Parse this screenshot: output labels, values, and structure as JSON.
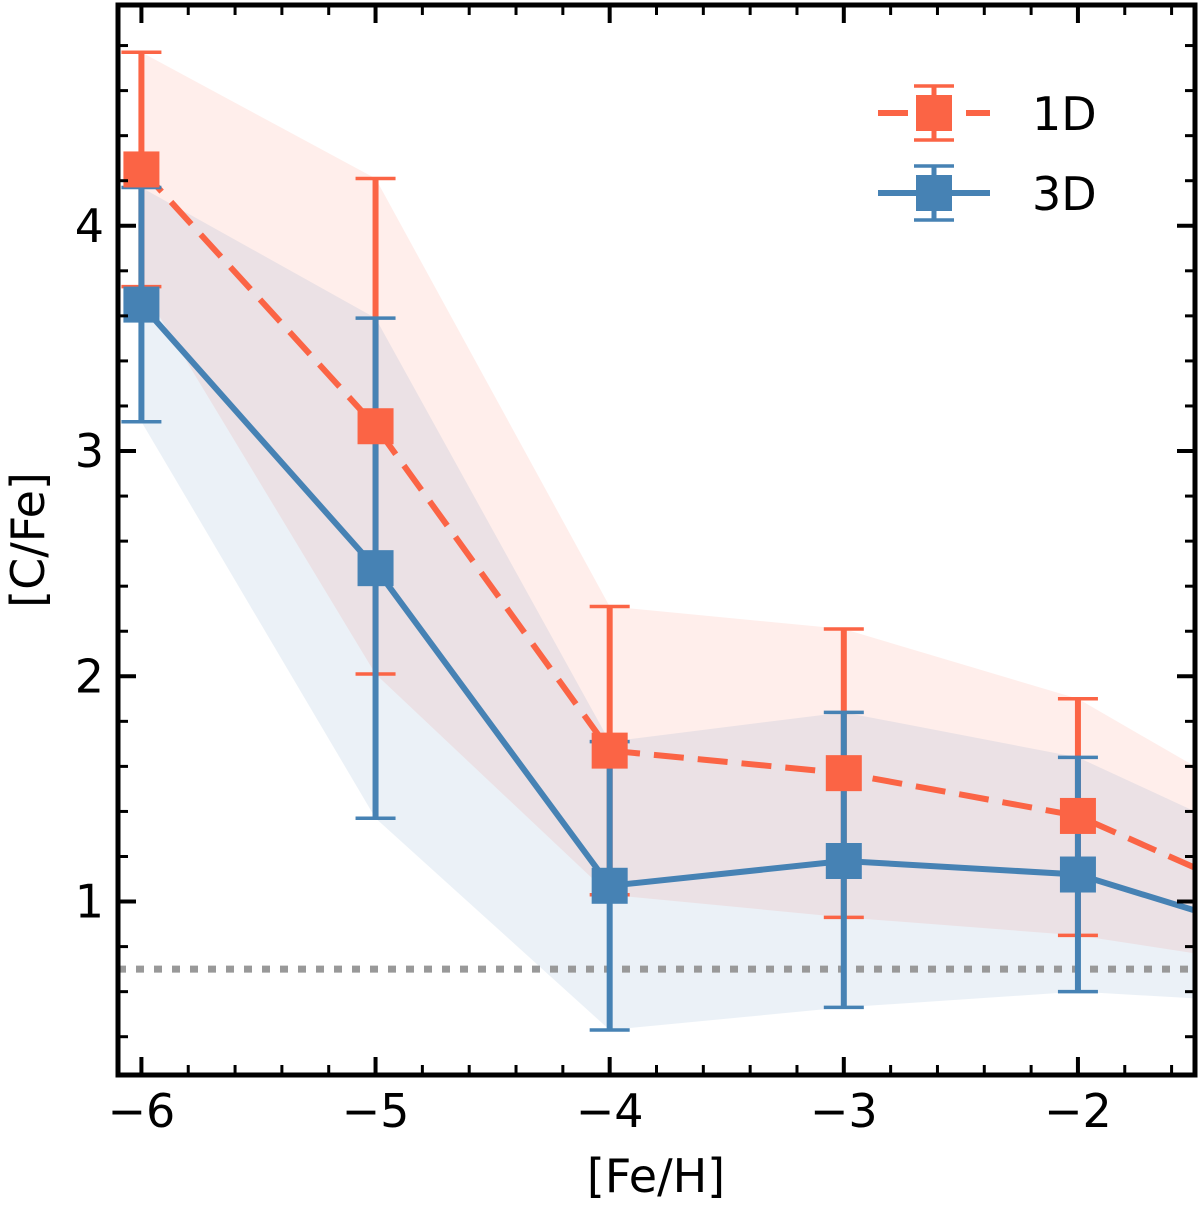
{
  "chart_data": {
    "type": "line",
    "title": "",
    "xlabel": "[Fe/H]",
    "ylabel": "[C/Fe]",
    "xlim": [
      -6.1,
      -1.5
    ],
    "ylim": [
      0.23,
      4.98
    ],
    "x_ticks": [
      -6,
      -5,
      -4,
      -3,
      -2
    ],
    "x_tick_labels": [
      "−6",
      "−5",
      "−4",
      "−3",
      "−2"
    ],
    "y_ticks": [
      1,
      2,
      3,
      4
    ],
    "y_tick_labels": [
      "1",
      "2",
      "3",
      "4"
    ],
    "reference_line": {
      "y": 0.7,
      "style": "dotted",
      "color": "#999999"
    },
    "legend": {
      "position": "top-right",
      "entries": [
        "1D",
        "3D"
      ]
    },
    "x": [
      -6,
      -5,
      -4,
      -3,
      -2
    ],
    "series": [
      {
        "name": "1D",
        "color": "#fb6445",
        "linestyle": "dashed",
        "marker": "square",
        "values": [
          4.25,
          3.11,
          1.67,
          1.57,
          1.38
        ],
        "err_low": [
          3.73,
          2.01,
          1.03,
          0.93,
          0.85
        ],
        "err_high": [
          4.77,
          4.21,
          2.31,
          2.21,
          1.9
        ],
        "band_x": [
          -6,
          -5,
          -4,
          -3,
          -2,
          -1.5
        ],
        "band_low": [
          3.73,
          2.01,
          1.03,
          0.93,
          0.85,
          0.77
        ],
        "band_high": [
          4.77,
          4.21,
          2.31,
          2.21,
          1.9,
          1.6
        ],
        "trail_x": -1.5,
        "trail_value": 1.15
      },
      {
        "name": "3D",
        "color": "#4682b4",
        "linestyle": "solid",
        "marker": "square",
        "values": [
          3.65,
          2.48,
          1.07,
          1.18,
          1.12
        ],
        "err_low": [
          3.13,
          1.37,
          0.43,
          0.53,
          0.6
        ],
        "err_high": [
          4.17,
          3.59,
          1.71,
          1.84,
          1.64
        ],
        "band_x": [
          -6,
          -5,
          -4,
          -3,
          -2,
          -1.5
        ],
        "band_low": [
          3.13,
          1.37,
          0.43,
          0.53,
          0.6,
          0.57
        ],
        "band_high": [
          4.17,
          3.59,
          1.71,
          1.84,
          1.64,
          1.4
        ],
        "trail_x": -1.5,
        "trail_value": 0.96
      }
    ]
  }
}
